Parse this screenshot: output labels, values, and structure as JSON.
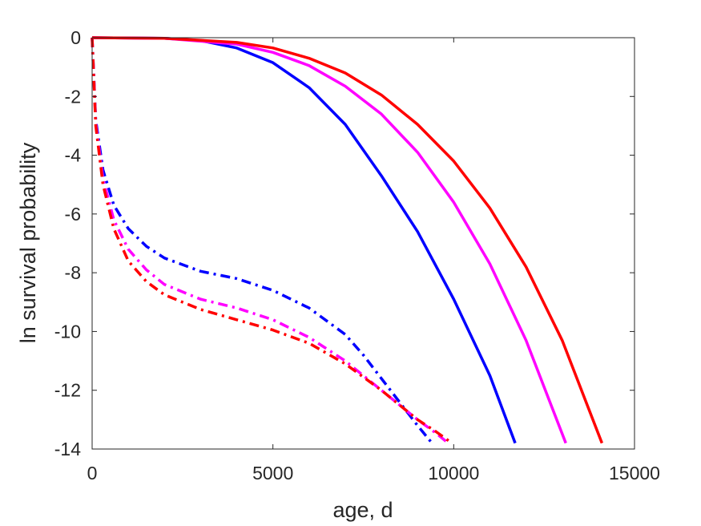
{
  "chart_data": {
    "type": "line",
    "title": "",
    "xlabel": "age, d",
    "ylabel": "ln survival probability",
    "xlim": [
      0,
      15000
    ],
    "ylim": [
      -14,
      0
    ],
    "xticks": [
      0,
      5000,
      10000,
      15000
    ],
    "yticks": [
      0,
      -2,
      -4,
      -6,
      -8,
      -10,
      -12,
      -14
    ],
    "xtick_labels": [
      "0",
      "5000",
      "10000",
      "15000"
    ],
    "ytick_labels": [
      "0",
      "-2",
      "-4",
      "-6",
      "-8",
      "-10",
      "-12",
      "-14"
    ],
    "grid": false,
    "legend": null,
    "series": [
      {
        "color": "#0000ff",
        "style": "solid",
        "x": [
          0,
          2000,
          3000,
          4000,
          5000,
          6000,
          7000,
          8000,
          9000,
          10000,
          11000,
          11700
        ],
        "y": [
          0,
          -0.02,
          -0.1,
          -0.35,
          -0.85,
          -1.7,
          -2.95,
          -4.7,
          -6.6,
          -8.9,
          -11.5,
          -13.8
        ]
      },
      {
        "color": "#ff00ff",
        "style": "solid",
        "x": [
          0,
          2000,
          4000,
          5000,
          6000,
          7000,
          8000,
          9000,
          10000,
          11000,
          12000,
          13100
        ],
        "y": [
          0,
          -0.02,
          -0.22,
          -0.5,
          -0.95,
          -1.65,
          -2.6,
          -3.9,
          -5.6,
          -7.7,
          -10.3,
          -13.8
        ]
      },
      {
        "color": "#ff0000",
        "style": "solid",
        "x": [
          0,
          2000,
          4000,
          5000,
          6000,
          7000,
          8000,
          9000,
          10000,
          11000,
          12000,
          13000,
          14100
        ],
        "y": [
          0,
          -0.02,
          -0.16,
          -0.35,
          -0.7,
          -1.2,
          -1.95,
          -2.95,
          -4.2,
          -5.8,
          -7.8,
          -10.3,
          -13.8
        ]
      },
      {
        "color": "#0000ff",
        "style": "dashdot",
        "x": [
          0,
          100,
          300,
          600,
          1000,
          1500,
          2000,
          3000,
          4000,
          5000,
          6000,
          7000,
          7500,
          8000,
          8500,
          9000,
          9400
        ],
        "y": [
          0,
          -2.8,
          -4.5,
          -5.7,
          -6.5,
          -7.1,
          -7.5,
          -7.95,
          -8.2,
          -8.6,
          -9.2,
          -10.1,
          -10.8,
          -11.6,
          -12.4,
          -13.2,
          -13.8
        ]
      },
      {
        "color": "#ff00ff",
        "style": "dashdot",
        "x": [
          0,
          100,
          300,
          600,
          1000,
          1500,
          2000,
          3000,
          4000,
          5000,
          6000,
          7000,
          8000,
          9000,
          9500,
          9850
        ],
        "y": [
          0,
          -2.9,
          -4.8,
          -6.2,
          -7.2,
          -7.9,
          -8.4,
          -8.9,
          -9.2,
          -9.6,
          -10.2,
          -11.0,
          -12.0,
          -13.0,
          -13.45,
          -13.8
        ]
      },
      {
        "color": "#ff0000",
        "style": "dashdot",
        "x": [
          0,
          100,
          300,
          600,
          1000,
          1500,
          2000,
          3000,
          4000,
          5000,
          6000,
          7000,
          8000,
          9000,
          9500,
          9950
        ],
        "y": [
          0,
          -3.0,
          -5.0,
          -6.5,
          -7.6,
          -8.3,
          -8.75,
          -9.25,
          -9.6,
          -9.95,
          -10.4,
          -11.1,
          -12.0,
          -13.0,
          -13.4,
          -13.8
        ]
      }
    ]
  }
}
